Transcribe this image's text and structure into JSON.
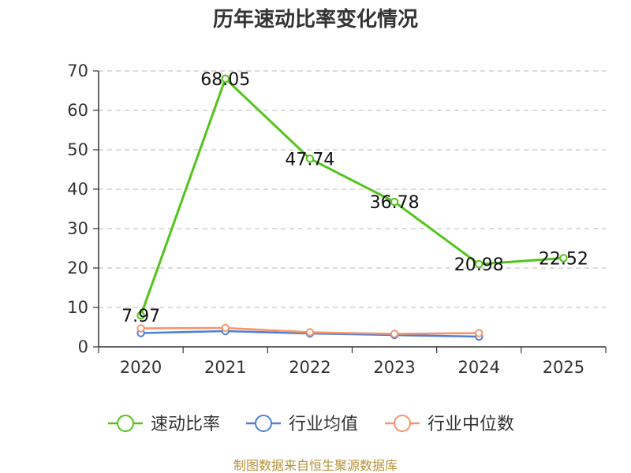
{
  "chart_data": {
    "type": "line",
    "title": "历年速动比率变化情况",
    "categories": [
      "2020",
      "2021",
      "2022",
      "2023",
      "2024",
      "2025"
    ],
    "ylim": [
      0,
      70
    ],
    "yticks": [
      0,
      10,
      20,
      30,
      40,
      50,
      60,
      70
    ],
    "grid": true,
    "legend_position": "bottom",
    "series": [
      {
        "name": "速动比率",
        "color": "#52c41a",
        "values": [
          7.97,
          68.05,
          47.74,
          36.78,
          20.98,
          22.52
        ],
        "labels": [
          "7.97",
          "68.05",
          "47.74",
          "36.78",
          "20.98",
          "22.52"
        ]
      },
      {
        "name": "行业均值",
        "color": "#4f7fd9",
        "values": [
          3.5,
          4.0,
          3.4,
          3.0,
          2.6,
          null
        ]
      },
      {
        "name": "行业中位数",
        "color": "#f5956b",
        "values": [
          4.7,
          4.8,
          3.7,
          3.3,
          3.5,
          null
        ]
      }
    ]
  },
  "source": "制图数据来自恒生聚源数据库"
}
